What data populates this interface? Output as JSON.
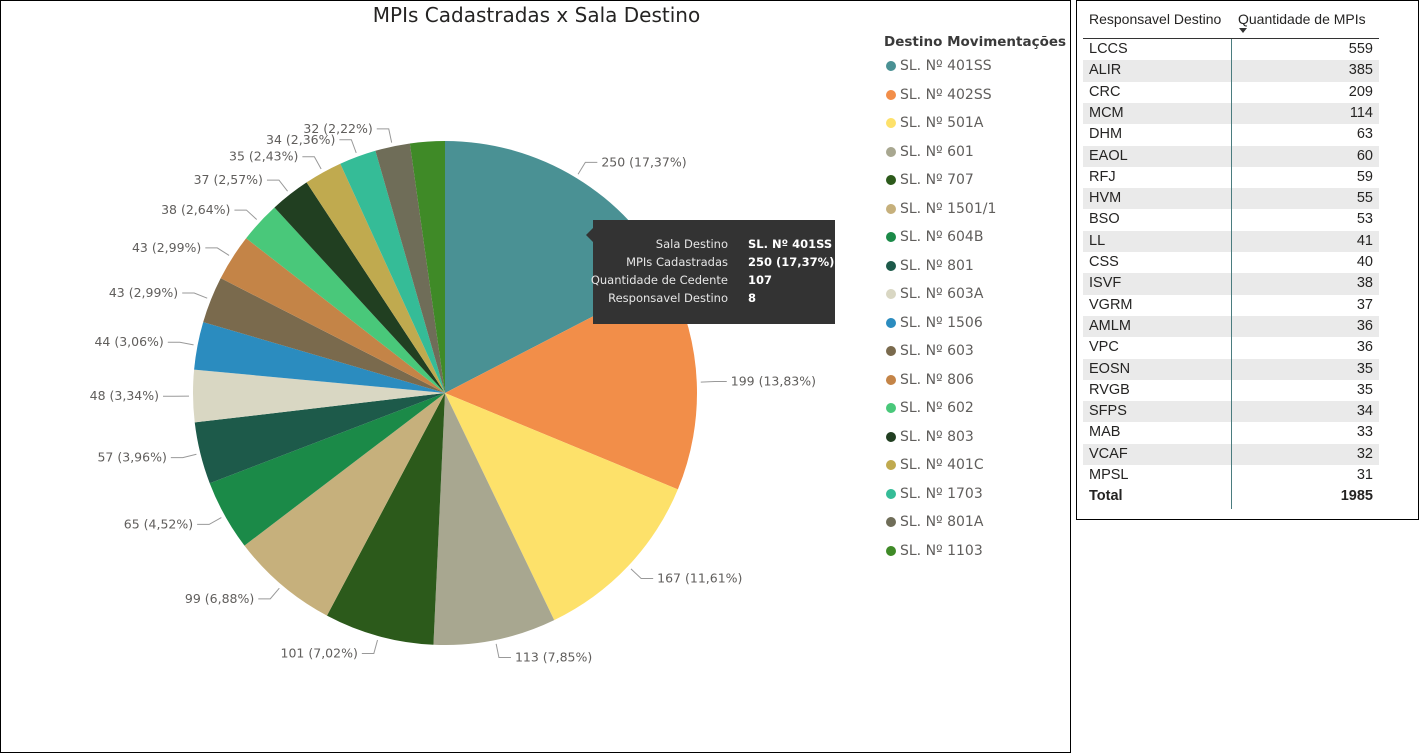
{
  "chart_data": {
    "type": "pie",
    "title": "MPIs Cadastradas x Sala Destino",
    "legend_title": "Destino Movimentações",
    "legend_position": "right",
    "slices": [
      {
        "name": "SL. Nº 401SS",
        "value": 250,
        "label": "250 (17,37%)",
        "color": "#4a9194"
      },
      {
        "name": "SL. Nº 402SS",
        "value": 199,
        "label": "199 (13,83%)",
        "color": "#f28e49"
      },
      {
        "name": "SL. Nº 501A",
        "value": 167,
        "label": "167 (11,61%)",
        "color": "#fde16a"
      },
      {
        "name": "SL. Nº 601",
        "value": 113,
        "label": "113 (7,85%)",
        "color": "#a8a790"
      },
      {
        "name": "SL. Nº 707",
        "value": 101,
        "label": "101 (7,02%)",
        "color": "#2c5a1b"
      },
      {
        "name": "SL. Nº 1501/1",
        "value": 99,
        "label": "99 (6,88%)",
        "color": "#c6b07c"
      },
      {
        "name": "SL. Nº 604B",
        "value": 65,
        "label": "65 (4,52%)",
        "color": "#1b8a48"
      },
      {
        "name": "SL. Nº 801",
        "value": 57,
        "label": "57 (3,96%)",
        "color": "#1d5a4a"
      },
      {
        "name": "SL. Nº 603A",
        "value": 48,
        "label": "48 (3,34%)",
        "color": "#d9d7c3"
      },
      {
        "name": "SL. Nº 1506",
        "value": 44,
        "label": "44 (3,06%)",
        "color": "#2b8cbf"
      },
      {
        "name": "SL. Nº 603",
        "value": 43,
        "label": "43 (2,99%)",
        "color": "#7a6a4d"
      },
      {
        "name": "SL. Nº 806",
        "value": 43,
        "label": "43 (2,99%)",
        "color": "#c48447"
      },
      {
        "name": "SL. Nº 602",
        "value": 38,
        "label": "38 (2,64%)",
        "color": "#49c87a"
      },
      {
        "name": "SL. Nº 803",
        "value": 37,
        "label": "37 (2,57%)",
        "color": "#213f21"
      },
      {
        "name": "SL. Nº 401C",
        "value": 35,
        "label": "35 (2,43%)",
        "color": "#c0aa4f"
      },
      {
        "name": "SL. Nº 1703",
        "value": 34,
        "label": "34 (2,36%)",
        "color": "#35bc97"
      },
      {
        "name": "SL. Nº 801A",
        "value": 32,
        "label": "32 (2,22%)",
        "color": "#6f6d58"
      },
      {
        "name": "SL. Nº 1103",
        "value": 32,
        "label": "",
        "color": "#3f8a27"
      }
    ]
  },
  "tooltip": {
    "rows": [
      {
        "key": "Sala Destino",
        "value": "SL. Nº 401SS"
      },
      {
        "key": "MPIs Cadastradas",
        "value": "250 (17,37%)"
      },
      {
        "key": "Quantidade de Cedente",
        "value": "107"
      },
      {
        "key": "Responsavel Destino",
        "value": "8"
      }
    ]
  },
  "table": {
    "columns": [
      "Responsavel Destino",
      "Quantidade de MPIs"
    ],
    "rows": [
      [
        "LCCS",
        "559"
      ],
      [
        "ALIR",
        "385"
      ],
      [
        "CRC",
        "209"
      ],
      [
        "MCM",
        "114"
      ],
      [
        "DHM",
        "63"
      ],
      [
        "EAOL",
        "60"
      ],
      [
        "RFJ",
        "59"
      ],
      [
        "HVM",
        "55"
      ],
      [
        "BSO",
        "53"
      ],
      [
        "LL",
        "41"
      ],
      [
        "CSS",
        "40"
      ],
      [
        "ISVF",
        "38"
      ],
      [
        "VGRM",
        "37"
      ],
      [
        "AMLM",
        "36"
      ],
      [
        "VPC",
        "36"
      ],
      [
        "EOSN",
        "35"
      ],
      [
        "RVGB",
        "35"
      ],
      [
        "SFPS",
        "34"
      ],
      [
        "MAB",
        "33"
      ],
      [
        "VCAF",
        "32"
      ],
      [
        "MPSL",
        "31"
      ]
    ],
    "total_label": "Total",
    "total_value": "1985"
  }
}
